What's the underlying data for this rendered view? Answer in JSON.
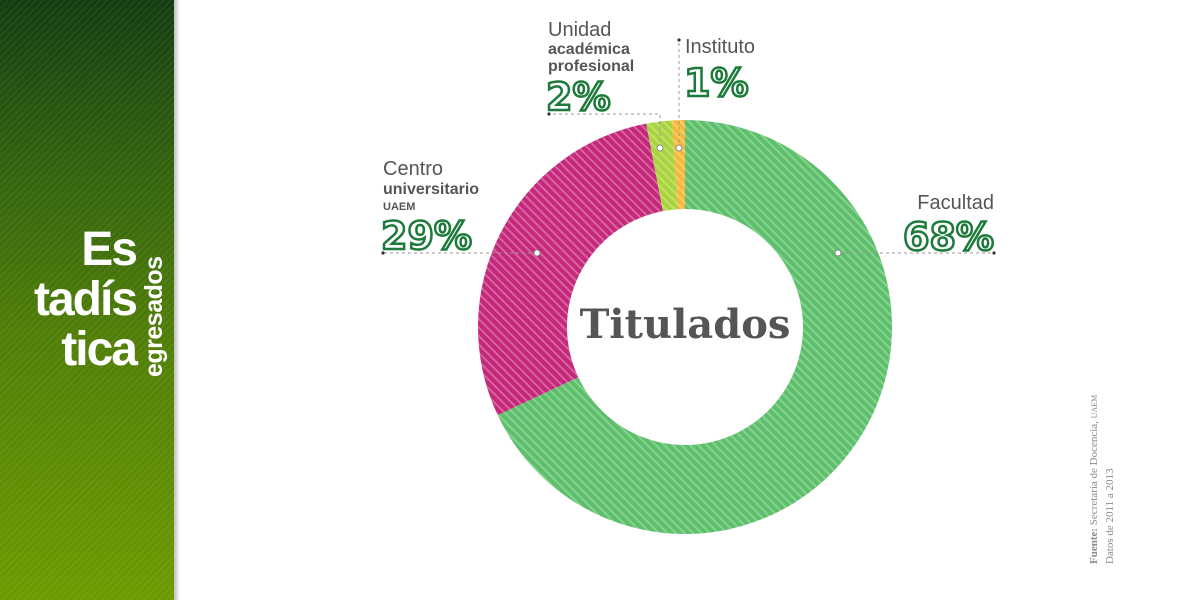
{
  "sidebar": {
    "title_lines": [
      "Es",
      "tadís",
      "tica"
    ],
    "subtitle": "egresados",
    "color_top": "#123d10",
    "color_bottom": "#6c9a00"
  },
  "chart_data": {
    "type": "pie",
    "donut": true,
    "title": "Titulados",
    "slices": [
      {
        "name": "Facultad",
        "value": 68,
        "label": "68%",
        "color": "#5cbf6a"
      },
      {
        "name": "Centro universitario UAEM",
        "value": 29,
        "label": "29%",
        "color": "#c5287a"
      },
      {
        "name": "Unidad académica profesional",
        "value": 2,
        "label": "2%",
        "color": "#a8d43c"
      },
      {
        "name": "Instituto",
        "value": 1,
        "label": "1%",
        "color": "#f7b838"
      }
    ],
    "labels": {
      "facultad": {
        "line1": "Facultad",
        "pct": "68%"
      },
      "centro": {
        "line1": "Centro",
        "line2": "universitario",
        "line3": "UAEM",
        "pct": "29%"
      },
      "unidad": {
        "line1": "Unidad",
        "line2": "académica",
        "line3": "profesional",
        "pct": "2%"
      },
      "instituto": {
        "line1": "Instituto",
        "pct": "1%"
      }
    }
  },
  "source": {
    "label": "Fuente:",
    "text": "Secretaría de Docencia,",
    "org": "UAEM",
    "dates": "Datos de 2011 a 2013"
  }
}
